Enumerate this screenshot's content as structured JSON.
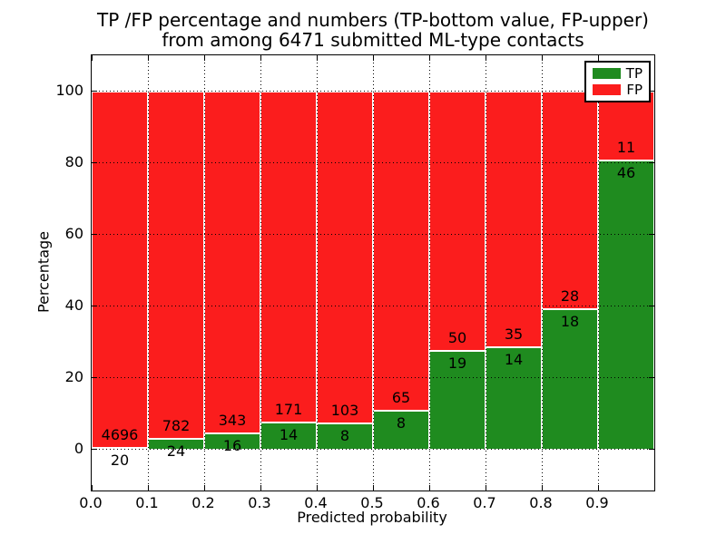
{
  "chart_data": {
    "type": "bar",
    "stacked": true,
    "title_lines": [
      "TP /FP percentage and numbers (TP-bottom value, FP-upper)",
      "from among 6471 submitted ML-type contacts"
    ],
    "xlabel": "Predicted probability",
    "ylabel": "Percentage",
    "xlim": [
      0,
      1
    ],
    "ylim": [
      -11.4,
      110.1
    ],
    "bin_width": 0.1,
    "bin_starts": [
      0.0,
      0.1,
      0.2,
      0.3,
      0.4,
      0.5,
      0.6,
      0.7,
      0.8,
      0.9
    ],
    "x_tick_values": [
      0.0,
      0.1,
      0.2,
      0.3,
      0.4,
      0.5,
      0.6,
      0.7,
      0.8,
      0.9
    ],
    "x_tick_labels": [
      "0.0",
      "0.1",
      "0.2",
      "0.3",
      "0.4",
      "0.5",
      "0.6",
      "0.7",
      "0.8",
      "0.9"
    ],
    "y_tick_values": [
      0,
      20,
      40,
      60,
      80,
      100
    ],
    "y_tick_labels": [
      "0",
      "20",
      "40",
      "60",
      "80",
      "100"
    ],
    "grid": "dotted",
    "series": [
      {
        "name": "TP",
        "color": "#1f8b1f",
        "counts": [
          20,
          24,
          16,
          14,
          8,
          8,
          19,
          14,
          18,
          46
        ]
      },
      {
        "name": "FP",
        "color": "#fb1d1d",
        "counts": [
          4696,
          782,
          343,
          171,
          103,
          65,
          50,
          35,
          28,
          11
        ]
      }
    ],
    "tp_percent_of_bin": [
      0.42,
      2.98,
      4.46,
      7.57,
      7.21,
      10.96,
      27.54,
      28.57,
      39.13,
      80.7
    ],
    "total_contacts": 6471,
    "legend": {
      "position": "upper-right",
      "entries": [
        {
          "label": "TP",
          "color": "#1f8b1f"
        },
        {
          "label": "FP",
          "color": "#fb1d1d"
        }
      ]
    }
  }
}
